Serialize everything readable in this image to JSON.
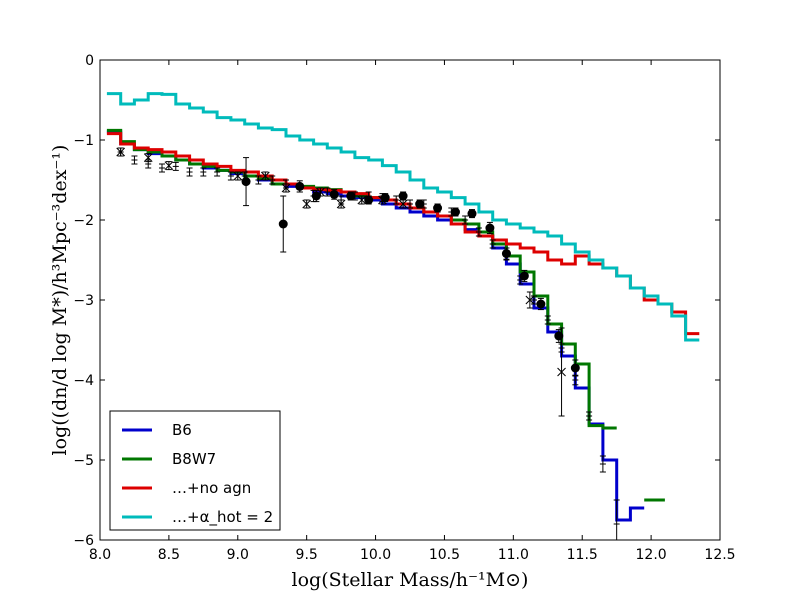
{
  "chart_data": {
    "type": "line",
    "xlabel": "log(Stellar Mass/h⁻¹M⊙)",
    "ylabel": "log((dn/d log M*)/h³Mpc⁻³dex⁻¹)",
    "xlim": [
      8.0,
      12.5
    ],
    "ylim": [
      -6,
      0
    ],
    "xticks": [
      "8.0",
      "8.5",
      "9.0",
      "9.5",
      "10.0",
      "10.5",
      "11.0",
      "11.5",
      "12.0",
      "12.5"
    ],
    "yticks": [
      "0",
      "−1",
      "−2",
      "−3",
      "−4",
      "−5",
      "−6"
    ],
    "legend_position": "lower-left",
    "grid": false,
    "bin_width": 0.1,
    "series": [
      {
        "name": "B6",
        "color": "#0000cc",
        "x": [
          8.1,
          8.2,
          8.3,
          8.4,
          8.5,
          8.6,
          8.7,
          8.8,
          8.9,
          9.0,
          9.1,
          9.2,
          9.3,
          9.4,
          9.5,
          9.6,
          9.7,
          9.8,
          9.9,
          10.0,
          10.1,
          10.2,
          10.3,
          10.4,
          10.5,
          10.6,
          10.7,
          10.8,
          10.9,
          11.0,
          11.1,
          11.2,
          11.3,
          11.4,
          11.5,
          11.6,
          11.7,
          11.8,
          11.9
        ],
        "y": [
          -0.9,
          -1.05,
          -1.12,
          -1.17,
          -1.2,
          -1.25,
          -1.3,
          -1.35,
          -1.38,
          -1.42,
          -1.45,
          -1.5,
          -1.55,
          -1.58,
          -1.6,
          -1.65,
          -1.67,
          -1.7,
          -1.72,
          -1.75,
          -1.8,
          -1.85,
          -1.9,
          -1.95,
          -2.0,
          -2.05,
          -2.12,
          -2.2,
          -2.35,
          -2.55,
          -2.8,
          -3.1,
          -3.4,
          -3.7,
          -4.1,
          -4.55,
          -5.0,
          -5.75,
          -5.6
        ]
      },
      {
        "name": "B8W7",
        "color": "#007700",
        "x": [
          8.1,
          8.2,
          8.3,
          8.4,
          8.5,
          8.6,
          8.7,
          8.8,
          8.9,
          9.0,
          9.1,
          9.2,
          9.3,
          9.4,
          9.5,
          9.6,
          9.7,
          9.8,
          9.9,
          10.0,
          10.1,
          10.2,
          10.3,
          10.4,
          10.5,
          10.6,
          10.7,
          10.8,
          10.9,
          11.0,
          11.1,
          11.2,
          11.3,
          11.4,
          11.5,
          11.6,
          11.7
        ],
        "y": [
          -0.88,
          -1.02,
          -1.12,
          -1.15,
          -1.2,
          -1.25,
          -1.3,
          -1.33,
          -1.38,
          -1.4,
          -1.45,
          -1.48,
          -1.55,
          -1.55,
          -1.58,
          -1.6,
          -1.62,
          -1.65,
          -1.7,
          -1.72,
          -1.75,
          -1.8,
          -1.85,
          -1.9,
          -1.95,
          -2.0,
          -2.05,
          -2.15,
          -2.3,
          -2.45,
          -2.65,
          -2.95,
          -3.3,
          -3.55,
          -3.8,
          -4.57,
          -4.6
        ]
      },
      {
        "name": "…+no agn",
        "color": "#dd0000",
        "x": [
          8.1,
          8.2,
          8.3,
          8.4,
          8.5,
          8.6,
          8.7,
          8.8,
          8.9,
          9.0,
          9.1,
          9.2,
          9.3,
          9.4,
          9.5,
          9.6,
          9.7,
          9.8,
          9.9,
          10.0,
          10.1,
          10.2,
          10.3,
          10.4,
          10.5,
          10.6,
          10.7,
          10.8,
          10.9,
          11.0,
          11.1,
          11.2,
          11.3,
          11.4,
          11.5,
          11.6,
          11.7,
          11.8,
          11.9,
          12.0,
          12.1,
          12.2,
          12.3
        ],
        "y": [
          -0.92,
          -1.05,
          -1.1,
          -1.12,
          -1.15,
          -1.2,
          -1.25,
          -1.3,
          -1.33,
          -1.38,
          -1.4,
          -1.45,
          -1.5,
          -1.55,
          -1.6,
          -1.62,
          -1.63,
          -1.65,
          -1.67,
          -1.72,
          -1.75,
          -1.8,
          -1.85,
          -1.9,
          -1.95,
          -2.05,
          -2.15,
          -2.2,
          -2.25,
          -2.3,
          -2.35,
          -2.4,
          -2.5,
          -2.55,
          -2.45,
          -2.55,
          -2.6,
          -2.7,
          -2.85,
          -3.0,
          -3.05,
          -3.15,
          -3.42
        ]
      },
      {
        "name": "…+α_hot = 2",
        "color": "#00bbbb",
        "x": [
          8.1,
          8.2,
          8.3,
          8.4,
          8.5,
          8.6,
          8.7,
          8.8,
          8.9,
          9.0,
          9.1,
          9.2,
          9.3,
          9.4,
          9.5,
          9.6,
          9.7,
          9.8,
          9.9,
          10.0,
          10.1,
          10.2,
          10.3,
          10.4,
          10.5,
          10.6,
          10.7,
          10.8,
          10.9,
          11.0,
          11.1,
          11.2,
          11.3,
          11.4,
          11.5,
          11.6,
          11.7,
          11.8,
          11.9,
          12.0,
          12.1,
          12.2,
          12.3
        ],
        "y": [
          -0.42,
          -0.55,
          -0.5,
          -0.42,
          -0.43,
          -0.55,
          -0.6,
          -0.65,
          -0.72,
          -0.75,
          -0.8,
          -0.85,
          -0.87,
          -0.95,
          -1.0,
          -1.05,
          -1.1,
          -1.15,
          -1.22,
          -1.25,
          -1.32,
          -1.4,
          -1.5,
          -1.6,
          -1.65,
          -1.72,
          -1.8,
          -1.9,
          -2.0,
          -2.05,
          -2.1,
          -2.15,
          -2.2,
          -2.3,
          -2.4,
          -2.5,
          -2.6,
          -2.7,
          -2.85,
          -2.95,
          -3.05,
          -3.2,
          -3.5
        ]
      }
    ],
    "extra_segments": [
      {
        "color": "#007700",
        "x0": 11.95,
        "x1": 12.1,
        "y": -5.5
      }
    ],
    "observations_dots": {
      "x": [
        9.06,
        9.33,
        9.45,
        9.57,
        9.7,
        9.82,
        9.95,
        10.07,
        10.2,
        10.32,
        10.45,
        10.58,
        10.7,
        10.83,
        10.95,
        11.08,
        11.2,
        11.33,
        11.45
      ],
      "y": [
        -1.52,
        -2.05,
        -1.58,
        -1.7,
        -1.68,
        -1.7,
        -1.75,
        -1.72,
        -1.7,
        -1.8,
        -1.85,
        -1.9,
        -1.92,
        -2.1,
        -2.42,
        -2.7,
        -3.05,
        -3.45,
        -3.85
      ],
      "err": [
        0.3,
        0.35,
        0.07,
        0.07,
        0.06,
        0.05,
        0.05,
        0.05,
        0.05,
        0.05,
        0.05,
        0.05,
        0.05,
        0.07,
        0.07,
        0.07,
        0.07,
        0.08,
        0.1
      ]
    },
    "observations_bars": {
      "x": [
        8.15,
        8.25,
        8.35,
        8.45,
        8.55,
        8.65,
        8.75,
        8.85,
        8.95,
        9.05,
        9.15,
        9.25,
        9.35,
        9.45,
        9.55,
        9.65,
        9.75,
        9.85,
        9.95,
        10.05,
        10.15,
        10.25,
        10.35,
        10.45,
        10.55,
        10.65,
        10.75,
        10.85,
        10.95,
        11.05,
        11.15,
        11.25,
        11.35,
        11.45,
        11.55,
        11.65,
        11.75
      ],
      "y": [
        -1.15,
        -1.25,
        -1.3,
        -1.35,
        -1.33,
        -1.4,
        -1.4,
        -1.4,
        -1.45,
        -1.45,
        -1.5,
        -1.5,
        -1.55,
        -1.6,
        -1.7,
        -1.65,
        -1.75,
        -1.7,
        -1.7,
        -1.72,
        -1.75,
        -1.8,
        -1.8,
        -1.85,
        -1.9,
        -2.0,
        -2.15,
        -2.3,
        -2.45,
        -2.75,
        -3.0,
        -3.25,
        -3.6,
        -4.0,
        -4.45,
        -5.05,
        -5.8
      ],
      "err": [
        0.05,
        0.05,
        0.05,
        0.05,
        0.05,
        0.05,
        0.05,
        0.05,
        0.05,
        0.05,
        0.05,
        0.05,
        0.05,
        0.05,
        0.07,
        0.05,
        0.05,
        0.05,
        0.05,
        0.05,
        0.05,
        0.05,
        0.05,
        0.05,
        0.05,
        0.05,
        0.05,
        0.05,
        0.05,
        0.05,
        0.05,
        0.05,
        0.05,
        0.06,
        0.05,
        0.1,
        0.3
      ]
    },
    "observations_crosses": {
      "x": [
        8.15,
        8.35,
        8.5,
        9.0,
        9.2,
        9.35,
        9.5,
        9.6,
        9.75,
        9.9,
        10.05,
        10.2,
        11.12,
        11.35
      ],
      "y": [
        -1.15,
        -1.22,
        -1.32,
        -1.45,
        -1.45,
        -1.6,
        -1.8,
        -1.65,
        -1.8,
        -1.75,
        -1.75,
        -1.8,
        -3.0,
        -3.9
      ],
      "err": [
        0.05,
        0.05,
        0.05,
        0.05,
        0.05,
        0.05,
        0.05,
        0.05,
        0.05,
        0.05,
        0.05,
        0.05,
        0.1,
        0.55
      ]
    }
  }
}
